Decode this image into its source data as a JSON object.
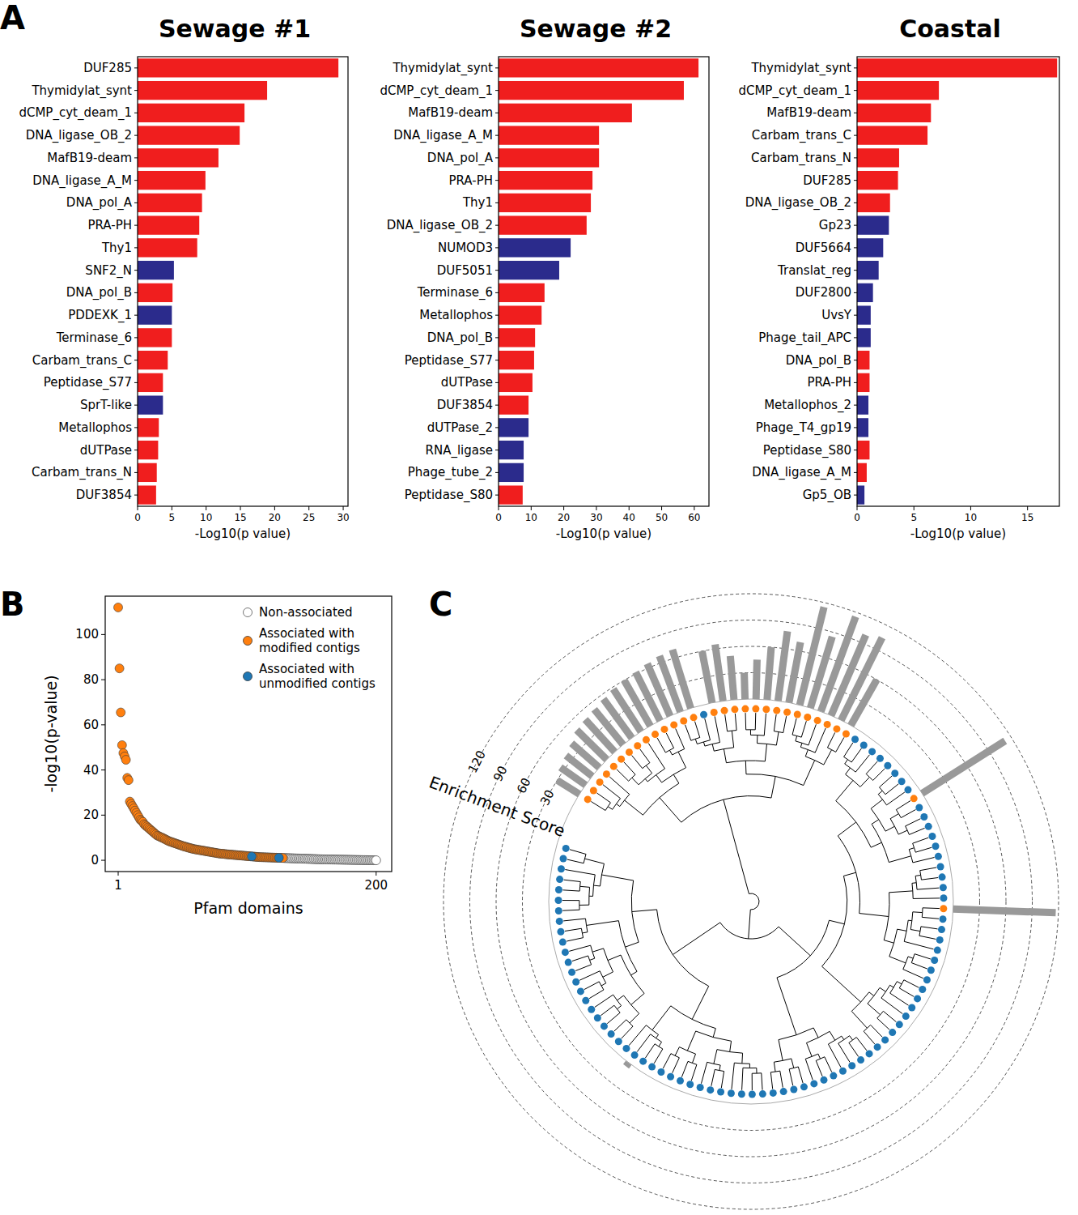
{
  "chart_data": [
    {
      "panel": "A",
      "type": "bar",
      "orientation": "horizontal",
      "title": "Sewage #1",
      "categories": [
        "DUF285",
        "Thymidylat_synt",
        "dCMP_cyt_deam_1",
        "DNA_ligase_OB_2",
        "MafB19-deam",
        "DNA_ligase_A_M",
        "DNA_pol_A",
        "PRA-PH",
        "Thy1",
        "SNF2_N",
        "DNA_pol_B",
        "PDDEXK_1",
        "Terminase_6",
        "Carbam_trans_C",
        "Peptidase_S77",
        "SprT-like",
        "Metallophos",
        "dUTPase",
        "Carbam_trans_N",
        "DUF3854"
      ],
      "values": [
        29.3,
        18.9,
        15.6,
        14.9,
        11.8,
        9.9,
        9.4,
        9.0,
        8.7,
        5.3,
        5.1,
        5.0,
        5.0,
        4.4,
        3.7,
        3.7,
        3.1,
        3.0,
        2.8,
        2.7
      ],
      "colors": [
        "#f01e1e",
        "#f01e1e",
        "#f01e1e",
        "#f01e1e",
        "#f01e1e",
        "#f01e1e",
        "#f01e1e",
        "#f01e1e",
        "#f01e1e",
        "#2b2b8c",
        "#f01e1e",
        "#2b2b8c",
        "#f01e1e",
        "#f01e1e",
        "#f01e1e",
        "#2b2b8c",
        "#f01e1e",
        "#f01e1e",
        "#f01e1e",
        "#f01e1e"
      ],
      "xlim": [
        0,
        30.7
      ],
      "xticks": [
        0,
        5,
        10,
        15,
        20,
        25,
        30
      ],
      "xlabel": "-Log10(p value)"
    },
    {
      "type": "bar",
      "orientation": "horizontal",
      "title": "Sewage #2",
      "categories": [
        "Thymidylat_synt",
        "dCMP_cyt_deam_1",
        "MafB19-deam",
        "DNA_ligase_A_M",
        "DNA_pol_A",
        "PRA-PH",
        "Thy1",
        "DNA_ligase_OB_2",
        "NUMOD3",
        "DUF5051",
        "Terminase_6",
        "Metallophos",
        "DNA_pol_B",
        "Peptidase_S77",
        "dUTPase",
        "DUF3854",
        "dUTPase_2",
        "RNA_ligase",
        "Phage_tube_2",
        "Peptidase_S80"
      ],
      "values": [
        61.3,
        56.8,
        40.9,
        30.8,
        30.8,
        28.8,
        28.3,
        27.0,
        22.1,
        18.6,
        14.1,
        13.2,
        11.2,
        10.9,
        10.4,
        9.2,
        9.2,
        7.7,
        7.7,
        7.4
      ],
      "colors": [
        "#f01e1e",
        "#f01e1e",
        "#f01e1e",
        "#f01e1e",
        "#f01e1e",
        "#f01e1e",
        "#f01e1e",
        "#f01e1e",
        "#2b2b8c",
        "#2b2b8c",
        "#f01e1e",
        "#f01e1e",
        "#f01e1e",
        "#f01e1e",
        "#f01e1e",
        "#f01e1e",
        "#2b2b8c",
        "#2b2b8c",
        "#2b2b8c",
        "#f01e1e"
      ],
      "xlim": [
        0,
        64.5
      ],
      "xticks": [
        0,
        10,
        20,
        30,
        40,
        50,
        60
      ],
      "xlabel": "-Log10(p value)"
    },
    {
      "type": "bar",
      "orientation": "horizontal",
      "title": "Coastal",
      "categories": [
        "Thymidylat_synt",
        "dCMP_cyt_deam_1",
        "MafB19-deam",
        "Carbam_trans_C",
        "Carbam_trans_N",
        "DUF285",
        "DNA_ligase_OB_2",
        "Gp23",
        "DUF5664",
        "Translat_reg",
        "DUF2800",
        "UvsY",
        "Phage_tail_APC",
        "DNA_pol_B",
        "PRA-PH",
        "Metallophos_2",
        "Phage_T4_gp19",
        "Peptidase_S80",
        "DNA_ligase_A_M",
        "Gp5_OB"
      ],
      "values": [
        17.6,
        7.2,
        6.5,
        6.2,
        3.7,
        3.6,
        2.9,
        2.8,
        2.3,
        1.9,
        1.4,
        1.2,
        1.2,
        1.1,
        1.1,
        1.0,
        1.0,
        1.1,
        0.85,
        0.65
      ],
      "colors": [
        "#f01e1e",
        "#f01e1e",
        "#f01e1e",
        "#f01e1e",
        "#f01e1e",
        "#f01e1e",
        "#f01e1e",
        "#2b2b8c",
        "#2b2b8c",
        "#2b2b8c",
        "#2b2b8c",
        "#2b2b8c",
        "#2b2b8c",
        "#f01e1e",
        "#f01e1e",
        "#2b2b8c",
        "#2b2b8c",
        "#f01e1e",
        "#f01e1e",
        "#2b2b8c"
      ],
      "xlim": [
        0,
        17.8
      ],
      "xticks": [
        0,
        5,
        10,
        15
      ],
      "xlabel": "-Log10(p value)"
    },
    {
      "panel": "B",
      "type": "scatter",
      "xlabel": "Pfam domains",
      "ylabel": "-log10(p-value)",
      "xlim": [
        -9,
        212
      ],
      "xticks": [
        1,
        200
      ],
      "ylim": [
        -5,
        117
      ],
      "yticks": [
        0,
        20,
        40,
        60,
        80,
        100
      ],
      "legend": "upper right",
      "series": [
        {
          "name": "Non-associated",
          "color": "#ffffff",
          "x": [
            129,
            130,
            131,
            132,
            133,
            134,
            135,
            136,
            137,
            138,
            139,
            140,
            141,
            142,
            143,
            144,
            145,
            146,
            147,
            148,
            149,
            150,
            151,
            152,
            153,
            154,
            155,
            156,
            157,
            158,
            159,
            160,
            161,
            162,
            163,
            164,
            165,
            166,
            167,
            168,
            169,
            170,
            171,
            172,
            173,
            174,
            175,
            176,
            177,
            178,
            179,
            180,
            181,
            182,
            183,
            184,
            185,
            186,
            187,
            188,
            189,
            190,
            191,
            192,
            193,
            194,
            195,
            196,
            197,
            198,
            199,
            200
          ],
          "values": [
            1,
            0.98,
            0.96,
            0.94,
            0.92,
            0.9,
            0.88,
            0.86,
            0.84,
            0.82,
            0.8,
            0.78,
            0.76,
            0.74,
            0.72,
            0.7,
            0.68,
            0.66,
            0.64,
            0.62,
            0.6,
            0.58,
            0.56,
            0.54,
            0.52,
            0.5,
            0.48,
            0.46,
            0.44,
            0.42,
            0.4,
            0.39,
            0.38,
            0.37,
            0.36,
            0.35,
            0.34,
            0.33,
            0.32,
            0.31,
            0.3,
            0.29,
            0.28,
            0.27,
            0.26,
            0.25,
            0.24,
            0.23,
            0.22,
            0.21,
            0.2,
            0.19,
            0.18,
            0.17,
            0.16,
            0.15,
            0.14,
            0.13,
            0.12,
            0.11,
            0.1,
            0.09,
            0.08,
            0.07,
            0.06,
            0.05,
            0.04,
            0.03,
            0.02,
            0.01,
            0.005,
            0
          ]
        },
        {
          "name": "Associated with modified contigs",
          "color": "#ff7f0e",
          "x": [
            1,
            2,
            3,
            4,
            5,
            6,
            7,
            8,
            9,
            10,
            11,
            12,
            13,
            14,
            15,
            16,
            17,
            18,
            19,
            20,
            21,
            22,
            23,
            24,
            25,
            26,
            27,
            28,
            29,
            30,
            31,
            32,
            33,
            34,
            35,
            36,
            37,
            38,
            39,
            40,
            41,
            42,
            43,
            44,
            45,
            46,
            47,
            48,
            49,
            50,
            51,
            52,
            53,
            54,
            55,
            56,
            57,
            58,
            59,
            60,
            61,
            62,
            63,
            64,
            65,
            66,
            67,
            68,
            69,
            70,
            71,
            72,
            73,
            74,
            75,
            76,
            77,
            78,
            79,
            80,
            81,
            82,
            83,
            84,
            85,
            86,
            87,
            88,
            89,
            90,
            91,
            92,
            93,
            94,
            95,
            96,
            97,
            98,
            99,
            100,
            101,
            102,
            103,
            105,
            106,
            107,
            108,
            109,
            110,
            111,
            112,
            113,
            114,
            115,
            116,
            117,
            118,
            119,
            120,
            121,
            122,
            123,
            124,
            126,
            127,
            128
          ],
          "values": [
            112,
            85,
            65.5,
            51,
            47.5,
            46,
            44.5,
            36.5,
            35.5,
            26,
            25,
            24,
            23,
            22,
            21,
            20,
            19,
            18,
            17.5,
            17,
            16,
            15.5,
            15,
            14.5,
            14,
            13.5,
            13,
            12.5,
            12,
            11.5,
            11,
            10.8,
            10.5,
            10.2,
            10,
            9.7,
            9.4,
            9.1,
            8.8,
            8.5,
            8.3,
            8.1,
            7.9,
            7.7,
            7.5,
            7.3,
            7.1,
            6.9,
            6.7,
            6.5,
            6.3,
            6.1,
            6,
            5.8,
            5.6,
            5.5,
            5.3,
            5.2,
            5,
            4.9,
            4.8,
            4.7,
            4.6,
            4.5,
            4.4,
            4.3,
            4.2,
            4.1,
            4,
            3.9,
            3.8,
            3.7,
            3.6,
            3.5,
            3.4,
            3.3,
            3.2,
            3.1,
            3,
            2.95,
            2.9,
            2.85,
            2.8,
            2.7,
            2.65,
            2.6,
            2.55,
            2.5,
            2.45,
            2.4,
            2.35,
            2.3,
            2.25,
            2.2,
            2.15,
            2.1,
            2.05,
            2,
            1.95,
            1.9,
            1.85,
            1.8,
            1.75,
            1.65,
            1.6,
            1.55,
            1.5,
            1.45,
            1.4,
            1.38,
            1.36,
            1.34,
            1.32,
            1.3,
            1.28,
            1.26,
            1.24,
            1.22,
            1.2,
            1.18,
            1.16,
            1.14,
            1.12,
            1.08,
            1.06,
            1.04
          ]
        },
        {
          "name": "Associated with unmodified contigs",
          "color": "#1f77b4",
          "x": [
            104,
            125
          ],
          "values": [
            1.7,
            1.1
          ]
        }
      ]
    },
    {
      "panel": "C",
      "type": "circular_tree",
      "ylabel": "Enrichment Score",
      "ylim": [
        0,
        120
      ],
      "yticks": [
        30,
        60,
        90,
        120
      ],
      "values": [
        30,
        35,
        38,
        42,
        48,
        50,
        52,
        55,
        58,
        60,
        62,
        65,
        68,
        70,
        0,
        60,
        65,
        50,
        30,
        45,
        60,
        80,
        70,
        115,
        85,
        115,
        100,
        105,
        60,
        0,
        0,
        0,
        0,
        0,
        0,
        0,
        0,
        112,
        0,
        0,
        0,
        0,
        0,
        0,
        0,
        0,
        0,
        0,
        117,
        0,
        0,
        0,
        0,
        0,
        0,
        0,
        0,
        0,
        0,
        0,
        0,
        0,
        0,
        0,
        0,
        0,
        0,
        0,
        0,
        0,
        0,
        0,
        0,
        0,
        0,
        0,
        0,
        0,
        0,
        0,
        0,
        0,
        0,
        0,
        0,
        0,
        0,
        0,
        5,
        0,
        0,
        0,
        0,
        0,
        0,
        0,
        0,
        0,
        0,
        0,
        0,
        0,
        0,
        0,
        0,
        0,
        0,
        0,
        0,
        0,
        0
      ],
      "colors": [
        "#ff7f0e",
        "#ff7f0e",
        "#ff7f0e",
        "#ff7f0e",
        "#ff7f0e",
        "#ff7f0e",
        "#ff7f0e",
        "#ff7f0e",
        "#ff7f0e",
        "#ff7f0e",
        "#ff7f0e",
        "#ff7f0e",
        "#ff7f0e",
        "#ff7f0e",
        "#1f77b4",
        "#ff7f0e",
        "#ff7f0e",
        "#ff7f0e",
        "#ff7f0e",
        "#ff7f0e",
        "#ff7f0e",
        "#ff7f0e",
        "#ff7f0e",
        "#ff7f0e",
        "#ff7f0e",
        "#ff7f0e",
        "#ff7f0e",
        "#ff7f0e",
        "#ff7f0e",
        "#1f77b4",
        "#1f77b4",
        "#1f77b4",
        "#1f77b4",
        "#1f77b4",
        "#1f77b4",
        "#1f77b4",
        "#1f77b4",
        "#ff7f0e",
        "#1f77b4",
        "#1f77b4",
        "#1f77b4",
        "#1f77b4",
        "#1f77b4",
        "#1f77b4",
        "#1f77b4",
        "#1f77b4",
        "#1f77b4",
        "#1f77b4",
        "#ff7f0e",
        "#1f77b4",
        "#1f77b4",
        "#1f77b4",
        "#1f77b4",
        "#1f77b4",
        "#1f77b4",
        "#1f77b4",
        "#1f77b4",
        "#1f77b4",
        "#1f77b4",
        "#1f77b4",
        "#1f77b4",
        "#1f77b4",
        "#1f77b4",
        "#1f77b4",
        "#1f77b4",
        "#1f77b4",
        "#1f77b4",
        "#1f77b4",
        "#1f77b4",
        "#1f77b4",
        "#1f77b4",
        "#1f77b4",
        "#1f77b4",
        "#1f77b4",
        "#1f77b4",
        "#1f77b4",
        "#1f77b4",
        "#1f77b4",
        "#1f77b4",
        "#1f77b4",
        "#1f77b4",
        "#1f77b4",
        "#1f77b4",
        "#1f77b4",
        "#1f77b4",
        "#1f77b4",
        "#1f77b4",
        "#1f77b4",
        "#1f77b4",
        "#1f77b4",
        "#1f77b4",
        "#1f77b4",
        "#1f77b4",
        "#1f77b4",
        "#1f77b4",
        "#1f77b4",
        "#1f77b4",
        "#1f77b4",
        "#1f77b4",
        "#1f77b4",
        "#1f77b4",
        "#1f77b4",
        "#1f77b4",
        "#1f77b4",
        "#1f77b4",
        "#1f77b4",
        "#1f77b4",
        "#1f77b4",
        "#1f77b4",
        "#1f77b4",
        "#1f77b4"
      ]
    }
  ]
}
